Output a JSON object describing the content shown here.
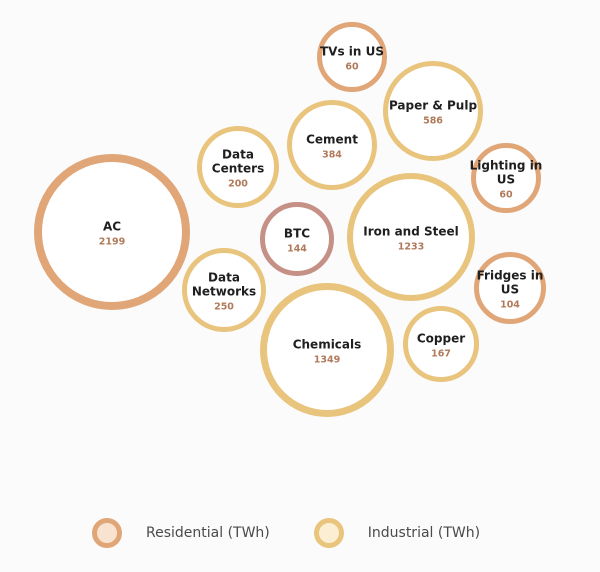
{
  "chart_data": {
    "type": "bubble",
    "units": "TWh",
    "categories_colors": {
      "Residential": {
        "stroke": "#e0a678",
        "fill": "#ffffff",
        "value_text": "#b07a5a"
      },
      "Industrial": {
        "stroke": "#e8c47c",
        "fill": "#ffffff",
        "value_text": "#b07a5a"
      },
      "Highlight": {
        "stroke": "#c59085",
        "fill": "#ffffff",
        "value_text": "#b07a5a"
      }
    },
    "bubbles": [
      {
        "label": "AC",
        "value": "2199",
        "category": "Residential"
      },
      {
        "label": "TVs in US",
        "value": "60",
        "category": "Residential"
      },
      {
        "label": "Lighting in US",
        "value": "60",
        "category": "Residential"
      },
      {
        "label": "Fridges in US",
        "value": "104",
        "category": "Residential"
      },
      {
        "label": "Paper & Pulp",
        "value": "586",
        "category": "Industrial"
      },
      {
        "label": "Cement",
        "value": "384",
        "category": "Industrial"
      },
      {
        "label": "Data Centers",
        "value": "200",
        "category": "Industrial"
      },
      {
        "label": "BTC",
        "value": "144",
        "category": "Highlight"
      },
      {
        "label": "Iron and Steel",
        "value": "1233",
        "category": "Industrial"
      },
      {
        "label": "Data Networks",
        "value": "250",
        "category": "Industrial"
      },
      {
        "label": "Chemicals",
        "value": "1349",
        "category": "Industrial"
      },
      {
        "label": "Copper",
        "value": "167",
        "category": "Industrial"
      }
    ],
    "legend": [
      {
        "label": "Residential (TWh)",
        "category": "Residential",
        "swatch_stroke": "#e0a678",
        "swatch_fill": "#f8e3d0"
      },
      {
        "label": "Industrial (TWh)",
        "category": "Industrial",
        "swatch_stroke": "#e8c47c",
        "swatch_fill": "#fbeed3"
      }
    ]
  }
}
